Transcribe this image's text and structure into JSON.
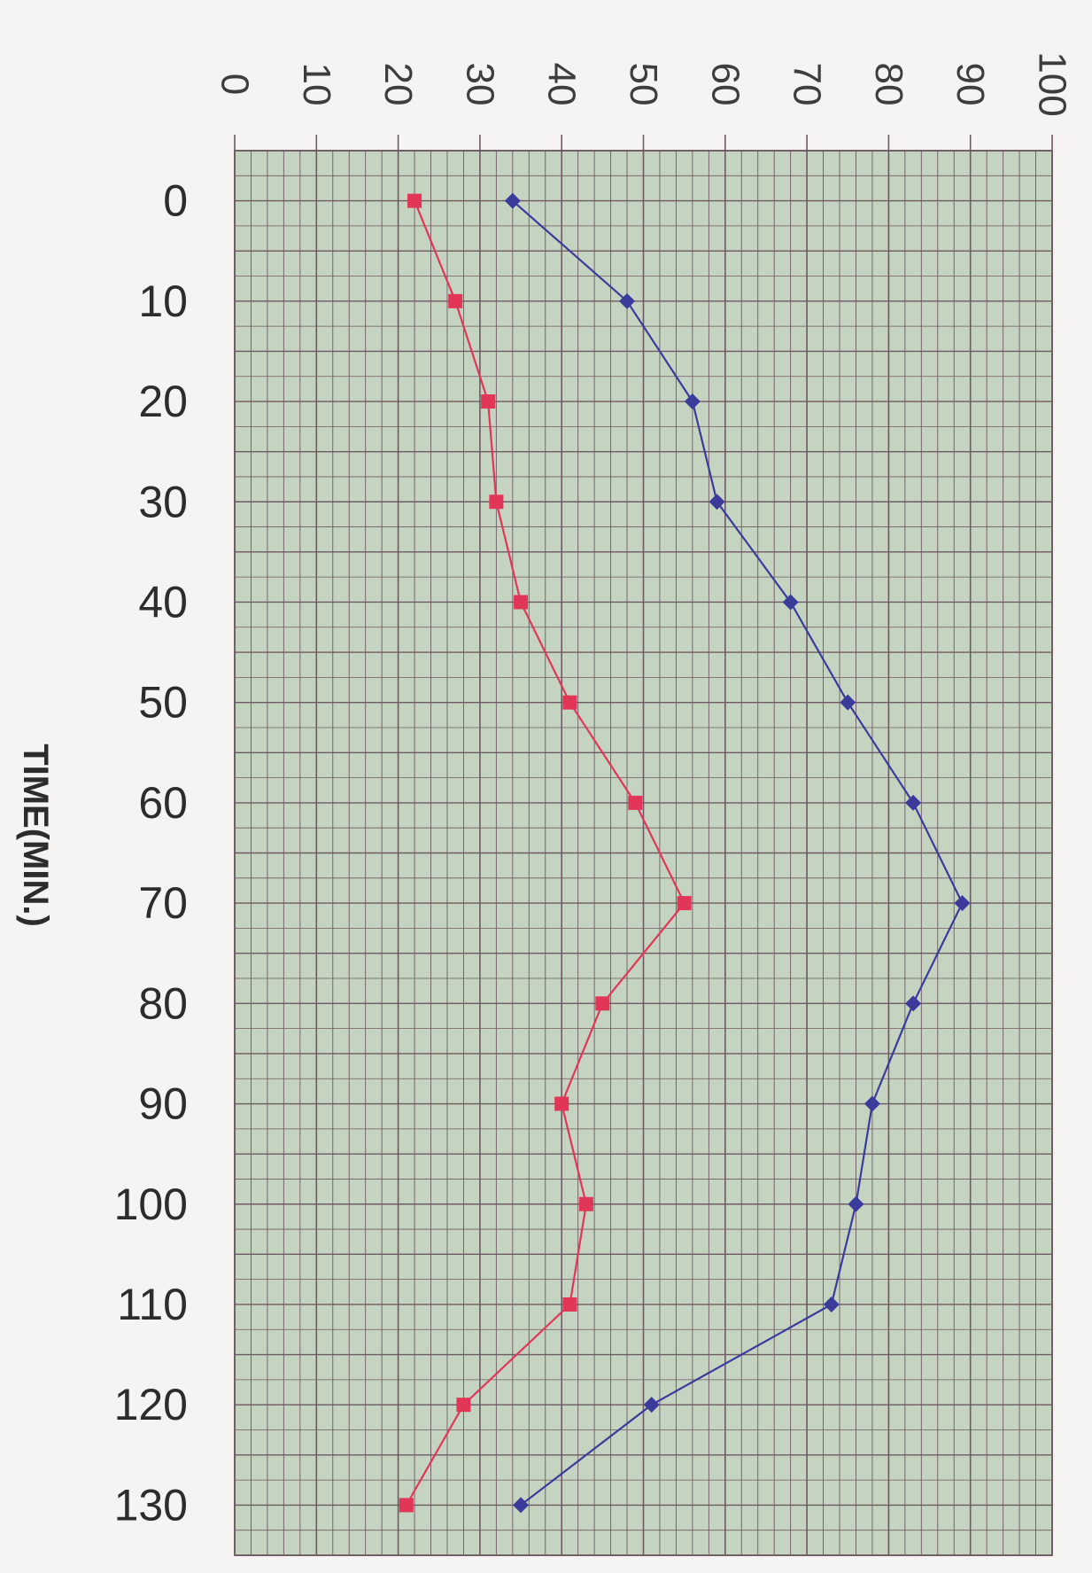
{
  "chart_data": {
    "type": "line",
    "orientation": "rotated-90-clockwise",
    "title": "",
    "xlabel": "TIME(MIN.)",
    "ylabel": "",
    "x": [
      0,
      10,
      20,
      30,
      40,
      50,
      60,
      70,
      80,
      90,
      100,
      110,
      120,
      130
    ],
    "x_ticks": [
      "0",
      "10",
      "20",
      "30",
      "40",
      "50",
      "60",
      "70",
      "80",
      "90",
      "100",
      "110",
      "120",
      "130"
    ],
    "y_ticks": [
      "0",
      "10",
      "20",
      "30",
      "40",
      "50",
      "60",
      "70",
      "80",
      "90",
      "100"
    ],
    "xlim": [
      -5,
      135
    ],
    "ylim": [
      0,
      100
    ],
    "grid": true,
    "legend": "none",
    "colors": {
      "plot_background": "#c5d3c1",
      "grid": "#6e5a62",
      "blue_series": "#3b3b9c",
      "red_series": "#e23658"
    },
    "series": [
      {
        "color": "#3b3b9c",
        "marker": "diamond",
        "values": [
          34,
          48,
          56,
          59,
          68,
          75,
          83,
          89,
          83,
          78,
          76,
          73,
          51,
          35
        ]
      },
      {
        "color": "#e23658",
        "marker": "square",
        "values": [
          22,
          27,
          31,
          32,
          35,
          41,
          49,
          55,
          45,
          40,
          43,
          41,
          28,
          21
        ]
      }
    ]
  }
}
